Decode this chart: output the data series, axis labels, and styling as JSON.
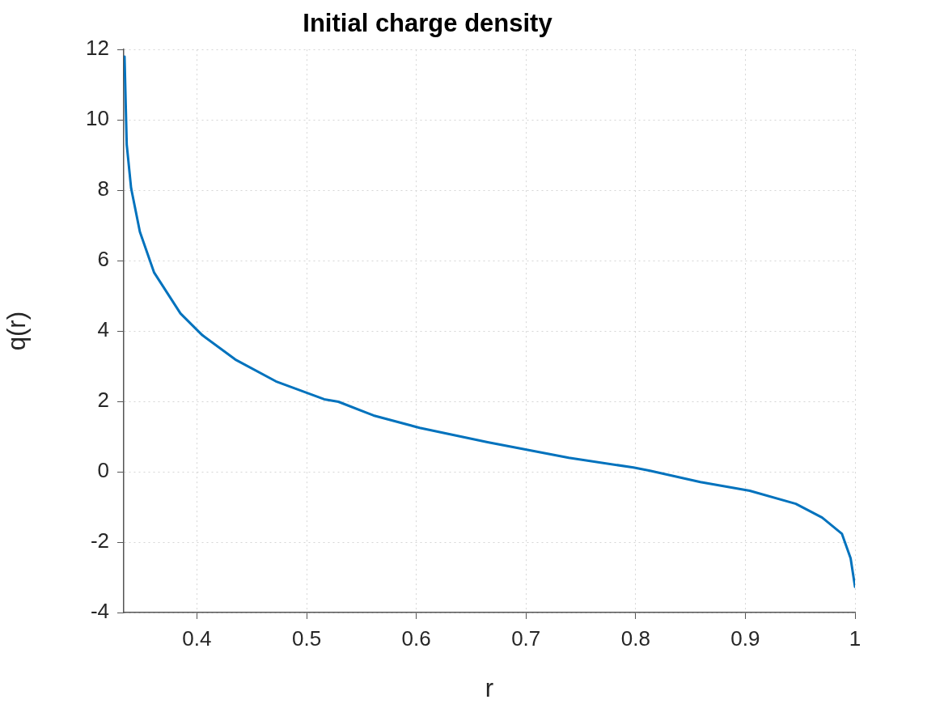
{
  "chart_data": {
    "type": "line",
    "title": "Initial charge density",
    "xlabel": "r",
    "ylabel": "q(r)",
    "series": [
      {
        "color": "#0072bd",
        "x": [
          0.334,
          0.336,
          0.34,
          0.348,
          0.361,
          0.385,
          0.405,
          0.435,
          0.472,
          0.516,
          0.529,
          0.561,
          0.603,
          0.665,
          0.739,
          0.798,
          0.813,
          0.859,
          0.904,
          0.946,
          0.97,
          0.988,
          0.996,
          1.0
        ],
        "values": [
          11.8,
          9.3,
          8.06,
          6.82,
          5.66,
          4.5,
          3.88,
          3.19,
          2.57,
          2.06,
          1.99,
          1.6,
          1.25,
          0.84,
          0.4,
          0.12,
          0.03,
          -0.29,
          -0.54,
          -0.91,
          -1.3,
          -1.76,
          -2.46,
          -3.27
        ]
      }
    ],
    "xlim": [
      0.3333,
      1
    ],
    "xticks": [
      0.4,
      0.5,
      0.6,
      0.7,
      0.8,
      0.9,
      1
    ],
    "ylim": [
      -4,
      12
    ],
    "yticks": [
      -4,
      -2,
      0,
      2,
      4,
      6,
      8,
      10,
      12
    ],
    "grid": true,
    "legend": false,
    "marker": "none",
    "line_style": "solid"
  }
}
